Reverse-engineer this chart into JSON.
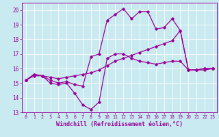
{
  "xlabel": "Windchill (Refroidissement éolien,°C)",
  "bg_color": "#c8eaf0",
  "line_color": "#990099",
  "grid_color": "#ffffff",
  "xlim": [
    -0.5,
    23.5
  ],
  "ylim": [
    13,
    20.5
  ],
  "yticks": [
    13,
    14,
    15,
    16,
    17,
    18,
    19,
    20
  ],
  "xticks": [
    0,
    1,
    2,
    3,
    4,
    5,
    6,
    7,
    8,
    9,
    10,
    11,
    12,
    13,
    14,
    15,
    16,
    17,
    18,
    19,
    20,
    21,
    22,
    23
  ],
  "line1_x": [
    0,
    1,
    2,
    3,
    4,
    5,
    6,
    7,
    8,
    9,
    10,
    11,
    12,
    13,
    14,
    15,
    16,
    17,
    18,
    19,
    20,
    21,
    22,
    23
  ],
  "line1_y": [
    15.2,
    15.6,
    15.5,
    15.0,
    14.9,
    15.0,
    14.3,
    13.5,
    13.2,
    13.7,
    16.7,
    17.0,
    17.0,
    16.7,
    16.5,
    16.4,
    16.3,
    16.4,
    16.5,
    16.5,
    15.9,
    15.9,
    15.9,
    16.0
  ],
  "line2_x": [
    0,
    1,
    2,
    3,
    4,
    5,
    6,
    7,
    8,
    9,
    10,
    11,
    12,
    13,
    14,
    15,
    16,
    17,
    18,
    19,
    20,
    21,
    22,
    23
  ],
  "line2_y": [
    15.2,
    15.6,
    15.5,
    15.2,
    15.0,
    15.1,
    14.9,
    14.8,
    16.8,
    17.0,
    19.3,
    19.7,
    20.1,
    19.4,
    19.9,
    19.9,
    18.7,
    18.8,
    19.4,
    18.6,
    15.9,
    15.9,
    16.0,
    16.0
  ],
  "line3_x": [
    0,
    1,
    2,
    3,
    4,
    5,
    6,
    7,
    8,
    9,
    10,
    11,
    12,
    13,
    14,
    15,
    16,
    17,
    18,
    19,
    20,
    21,
    22,
    23
  ],
  "line3_y": [
    15.2,
    15.5,
    15.5,
    15.4,
    15.3,
    15.4,
    15.5,
    15.6,
    15.7,
    15.9,
    16.2,
    16.5,
    16.7,
    16.9,
    17.1,
    17.3,
    17.5,
    17.7,
    17.9,
    18.6,
    15.9,
    15.9,
    16.0,
    16.0
  ],
  "tick_fontsize": 5.5,
  "xlabel_fontsize": 6.0,
  "marker": "D",
  "markersize": 1.8,
  "linewidth": 0.9
}
